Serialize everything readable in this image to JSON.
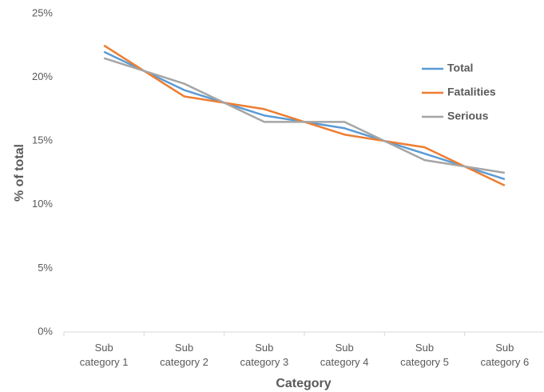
{
  "chart_data": {
    "type": "line",
    "x_label": "Category",
    "y_label": "% of total",
    "categories": [
      "Sub category 1",
      "Sub category 2",
      "Sub category 3",
      "Sub category 4",
      "Sub category 5",
      "Sub category 6"
    ],
    "series": [
      {
        "name": "Total",
        "color": "#5b9bd5",
        "values": [
          22.0,
          19.0,
          17.0,
          16.0,
          14.0,
          12.0
        ]
      },
      {
        "name": "Fatalities",
        "color": "#ed7d31",
        "values": [
          22.5,
          18.5,
          17.5,
          15.5,
          14.5,
          11.5
        ]
      },
      {
        "name": "Serious",
        "color": "#a5a5a5",
        "values": [
          21.5,
          19.5,
          16.5,
          16.5,
          13.5,
          12.5
        ]
      }
    ],
    "ylim": [
      0,
      25
    ],
    "yticks": [
      {
        "value": 0,
        "label": "0%"
      },
      {
        "value": 5,
        "label": "5%"
      },
      {
        "value": 10,
        "label": "10%"
      },
      {
        "value": 15,
        "label": "15%"
      },
      {
        "value": 20,
        "label": "20%"
      },
      {
        "value": 25,
        "label": "25%"
      }
    ],
    "grid": false,
    "legend": "upper right"
  }
}
